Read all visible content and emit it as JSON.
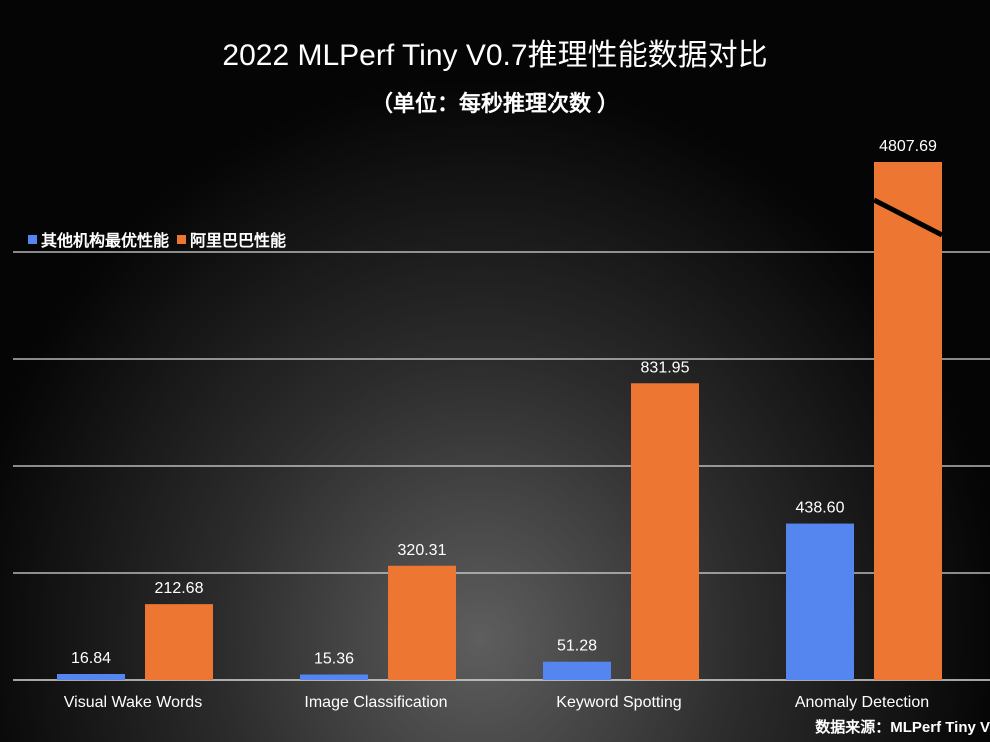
{
  "chart_data": {
    "type": "bar",
    "title": "2022 MLPerf Tiny V0.7推理性能数据对比",
    "subtitle": "（单位：每秒推理次数 ）",
    "categories": [
      "Visual Wake Words",
      "Image Classification",
      "Keyword Spotting",
      "Anomaly Detection"
    ],
    "series": [
      {
        "name": "其他机构最优性能",
        "color": "#5585EE",
        "values": [
          16.84,
          15.36,
          51.28,
          438.6
        ],
        "labels": [
          "16.84",
          "15.36",
          "51.28",
          "438.60"
        ]
      },
      {
        "name": "阿里巴巴性能",
        "color": "#ED7632",
        "values": [
          212.68,
          320.31,
          831.95,
          4807.69
        ],
        "labels": [
          "212.68",
          "320.31",
          "831.95",
          "4807.69"
        ]
      }
    ],
    "ylim": [
      0,
      1500
    ],
    "ygrid_step": 300,
    "grid": true,
    "y_tick_labels_shown": false,
    "axis_break": true,
    "legend_position": "top-left",
    "source": "数据来源：MLPerf Tiny V"
  }
}
